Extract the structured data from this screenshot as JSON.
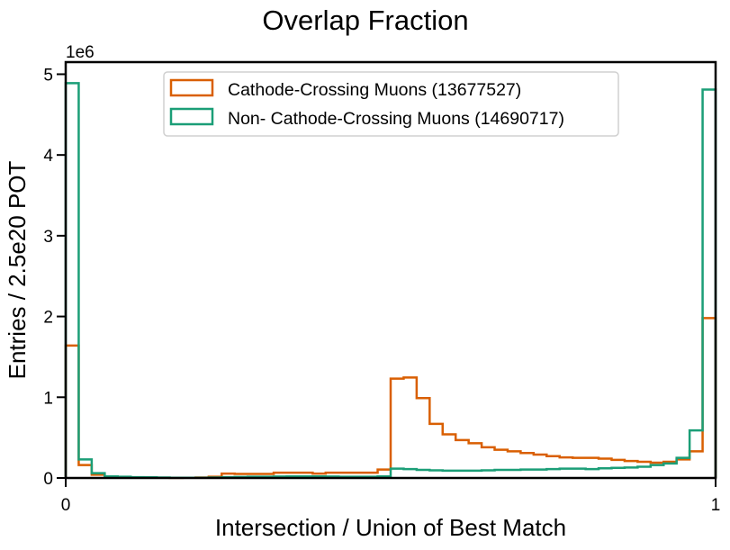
{
  "chart_data": {
    "type": "histogram",
    "title": "Overlap Fraction",
    "xlabel": "Intersection / Union of Best Match",
    "ylabel": "Entries / 2.5e20 POT",
    "y_offset_text": "1e6",
    "xlim": [
      0,
      1
    ],
    "ylim": [
      0,
      5150000
    ],
    "x_ticks": [
      "0",
      "1"
    ],
    "y_ticks": [
      "0",
      "1",
      "2",
      "3",
      "4",
      "5"
    ],
    "bins": 50,
    "legend_position": "upper center",
    "series": [
      {
        "name": "Cathode-Crossing Muons (13677527)",
        "color": "#d95f02",
        "values": [
          1640000,
          160000,
          40000,
          15000,
          10000,
          8000,
          5000,
          3000,
          2000,
          3000,
          5000,
          15000,
          55000,
          50000,
          50000,
          50000,
          65000,
          65000,
          65000,
          55000,
          65000,
          65000,
          65000,
          65000,
          105000,
          1230000,
          1245000,
          990000,
          670000,
          540000,
          470000,
          430000,
          380000,
          350000,
          330000,
          310000,
          290000,
          270000,
          255000,
          250000,
          250000,
          240000,
          225000,
          210000,
          200000,
          190000,
          200000,
          230000,
          330000,
          1980000
        ]
      },
      {
        "name": "Non- Cathode-Crossing Muons (14690717)",
        "color": "#1b9e77",
        "values": [
          4890000,
          230000,
          60000,
          20000,
          15000,
          10000,
          8000,
          5000,
          3000,
          3000,
          3000,
          5000,
          10000,
          12000,
          15000,
          15000,
          18000,
          20000,
          20000,
          20000,
          18000,
          15000,
          15000,
          15000,
          20000,
          115000,
          110000,
          100000,
          95000,
          90000,
          90000,
          90000,
          95000,
          100000,
          100000,
          105000,
          105000,
          110000,
          115000,
          115000,
          110000,
          120000,
          125000,
          130000,
          140000,
          160000,
          180000,
          250000,
          590000,
          4810000
        ]
      }
    ]
  }
}
